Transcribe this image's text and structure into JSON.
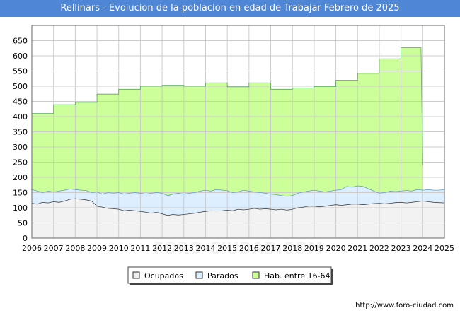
{
  "chart_data": {
    "type": "area",
    "title": "Rellinars - Evolucion de la poblacion en edad de Trabajar Febrero de 2025",
    "xlabel": "",
    "ylabel": "",
    "xlim": [
      2006,
      2025
    ],
    "ylim": [
      0,
      700
    ],
    "x_ticks": [
      "2006",
      "2007",
      "2008",
      "2009",
      "2010",
      "2011",
      "2012",
      "2013",
      "2014",
      "2015",
      "2016",
      "2017",
      "2018",
      "2019",
      "2020",
      "2021",
      "2022",
      "2023",
      "2024",
      "2025"
    ],
    "y_ticks": [
      0,
      50,
      100,
      150,
      200,
      250,
      300,
      350,
      400,
      450,
      500,
      550,
      600,
      650
    ],
    "grid": true,
    "legend": [
      "Ocupados",
      "Parados",
      "Hab. entre 16-64"
    ],
    "series": [
      {
        "name": "Hab. entre 16-64",
        "color": "#ccff99",
        "points": [
          [
            2006,
            410
          ],
          [
            2007,
            410
          ],
          [
            2007,
            439
          ],
          [
            2008,
            439
          ],
          [
            2008,
            447
          ],
          [
            2009,
            447
          ],
          [
            2009,
            474
          ],
          [
            2010,
            474
          ],
          [
            2010,
            490
          ],
          [
            2011,
            490
          ],
          [
            2011,
            500
          ],
          [
            2012,
            500
          ],
          [
            2012,
            503
          ],
          [
            2013,
            503
          ],
          [
            2013,
            500
          ],
          [
            2014,
            500
          ],
          [
            2014,
            511
          ],
          [
            2015,
            511
          ],
          [
            2015,
            498
          ],
          [
            2016,
            498
          ],
          [
            2016,
            511
          ],
          [
            2017,
            511
          ],
          [
            2017,
            490
          ],
          [
            2018,
            490
          ],
          [
            2018,
            494
          ],
          [
            2019,
            494
          ],
          [
            2019,
            499
          ],
          [
            2020,
            499
          ],
          [
            2020,
            520
          ],
          [
            2021,
            520
          ],
          [
            2021,
            542
          ],
          [
            2022,
            542
          ],
          [
            2022,
            590
          ],
          [
            2023,
            590
          ],
          [
            2023,
            627
          ],
          [
            2023.92,
            627
          ],
          [
            2024,
            240
          ]
        ]
      },
      {
        "name": "Parados",
        "color": "#ddeeff",
        "points": [
          [
            2006,
            160
          ],
          [
            2006.25,
            155
          ],
          [
            2006.5,
            150
          ],
          [
            2006.75,
            155
          ],
          [
            2007,
            152
          ],
          [
            2007.25,
            155
          ],
          [
            2007.5,
            158
          ],
          [
            2007.75,
            162
          ],
          [
            2008,
            160
          ],
          [
            2008.25,
            158
          ],
          [
            2008.5,
            157
          ],
          [
            2008.75,
            150
          ],
          [
            2009,
            152
          ],
          [
            2009.25,
            145
          ],
          [
            2009.5,
            150
          ],
          [
            2009.75,
            148
          ],
          [
            2010,
            150
          ],
          [
            2010.25,
            145
          ],
          [
            2010.5,
            148
          ],
          [
            2010.75,
            150
          ],
          [
            2011,
            148
          ],
          [
            2011.25,
            145
          ],
          [
            2011.5,
            148
          ],
          [
            2011.75,
            150
          ],
          [
            2012,
            148
          ],
          [
            2012.25,
            140
          ],
          [
            2012.5,
            145
          ],
          [
            2012.75,
            148
          ],
          [
            2013,
            145
          ],
          [
            2013.25,
            148
          ],
          [
            2013.5,
            150
          ],
          [
            2013.75,
            155
          ],
          [
            2014,
            158
          ],
          [
            2014.25,
            155
          ],
          [
            2014.5,
            160
          ],
          [
            2014.75,
            158
          ],
          [
            2015,
            156
          ],
          [
            2015.25,
            150
          ],
          [
            2015.5,
            152
          ],
          [
            2015.75,
            158
          ],
          [
            2016,
            155
          ],
          [
            2016.25,
            152
          ],
          [
            2016.5,
            150
          ],
          [
            2016.75,
            148
          ],
          [
            2017,
            145
          ],
          [
            2017.25,
            143
          ],
          [
            2017.5,
            140
          ],
          [
            2017.75,
            138
          ],
          [
            2018,
            140
          ],
          [
            2018.25,
            148
          ],
          [
            2018.5,
            152
          ],
          [
            2018.75,
            155
          ],
          [
            2019,
            158
          ],
          [
            2019.25,
            155
          ],
          [
            2019.5,
            152
          ],
          [
            2019.75,
            155
          ],
          [
            2020,
            158
          ],
          [
            2020.25,
            160
          ],
          [
            2020.5,
            170
          ],
          [
            2020.75,
            168
          ],
          [
            2021,
            172
          ],
          [
            2021.25,
            170
          ],
          [
            2021.5,
            162
          ],
          [
            2021.75,
            155
          ],
          [
            2022,
            148
          ],
          [
            2022.25,
            150
          ],
          [
            2022.5,
            155
          ],
          [
            2022.75,
            153
          ],
          [
            2023,
            155
          ],
          [
            2023.25,
            157
          ],
          [
            2023.5,
            155
          ],
          [
            2023.75,
            160
          ],
          [
            2024,
            158
          ],
          [
            2024.25,
            160
          ],
          [
            2024.5,
            158
          ],
          [
            2024.75,
            158
          ],
          [
            2025,
            160
          ]
        ]
      },
      {
        "name": "Ocupados",
        "color": "#f2f2f2",
        "points": [
          [
            2006,
            115
          ],
          [
            2006.25,
            112
          ],
          [
            2006.5,
            118
          ],
          [
            2006.75,
            116
          ],
          [
            2007,
            120
          ],
          [
            2007.25,
            118
          ],
          [
            2007.5,
            122
          ],
          [
            2007.75,
            128
          ],
          [
            2008,
            130
          ],
          [
            2008.25,
            128
          ],
          [
            2008.5,
            126
          ],
          [
            2008.75,
            122
          ],
          [
            2009,
            105
          ],
          [
            2009.25,
            102
          ],
          [
            2009.5,
            98
          ],
          [
            2009.75,
            97
          ],
          [
            2010,
            95
          ],
          [
            2010.25,
            90
          ],
          [
            2010.5,
            92
          ],
          [
            2010.75,
            90
          ],
          [
            2011,
            88
          ],
          [
            2011.25,
            85
          ],
          [
            2011.5,
            82
          ],
          [
            2011.75,
            85
          ],
          [
            2012,
            80
          ],
          [
            2012.25,
            75
          ],
          [
            2012.5,
            78
          ],
          [
            2012.75,
            76
          ],
          [
            2013,
            78
          ],
          [
            2013.25,
            80
          ],
          [
            2013.5,
            82
          ],
          [
            2013.75,
            85
          ],
          [
            2014,
            88
          ],
          [
            2014.25,
            90
          ],
          [
            2014.5,
            89
          ],
          [
            2014.75,
            90
          ],
          [
            2015,
            92
          ],
          [
            2015.25,
            90
          ],
          [
            2015.5,
            95
          ],
          [
            2015.75,
            93
          ],
          [
            2016,
            95
          ],
          [
            2016.25,
            98
          ],
          [
            2016.5,
            95
          ],
          [
            2016.75,
            97
          ],
          [
            2017,
            95
          ],
          [
            2017.25,
            93
          ],
          [
            2017.5,
            95
          ],
          [
            2017.75,
            92
          ],
          [
            2018,
            95
          ],
          [
            2018.25,
            100
          ],
          [
            2018.5,
            102
          ],
          [
            2018.75,
            105
          ],
          [
            2019,
            105
          ],
          [
            2019.25,
            103
          ],
          [
            2019.5,
            105
          ],
          [
            2019.75,
            108
          ],
          [
            2020,
            110
          ],
          [
            2020.25,
            108
          ],
          [
            2020.5,
            110
          ],
          [
            2020.75,
            112
          ],
          [
            2021,
            112
          ],
          [
            2021.25,
            110
          ],
          [
            2021.5,
            112
          ],
          [
            2021.75,
            114
          ],
          [
            2022,
            115
          ],
          [
            2022.25,
            113
          ],
          [
            2022.5,
            115
          ],
          [
            2022.75,
            117
          ],
          [
            2023,
            118
          ],
          [
            2023.25,
            116
          ],
          [
            2023.5,
            118
          ],
          [
            2023.75,
            120
          ],
          [
            2024,
            122
          ],
          [
            2024.25,
            120
          ],
          [
            2024.5,
            118
          ],
          [
            2024.75,
            117
          ],
          [
            2025,
            116
          ]
        ]
      }
    ]
  },
  "watermark": "FORO-CIUDAD.COM",
  "footer_url": "http://www.foro-ciudad.com"
}
